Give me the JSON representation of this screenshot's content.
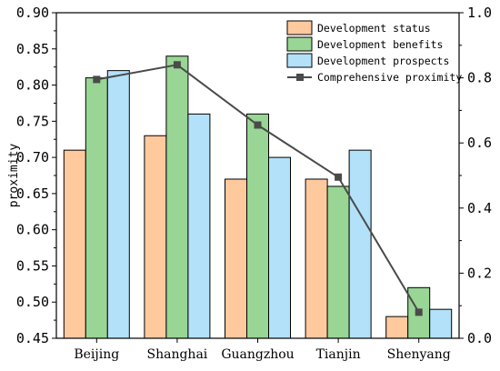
{
  "chart_data": {
    "type": "bar",
    "categories": [
      "Beijing",
      "Shanghai",
      "Guangzhou",
      "Tianjin",
      "Shenyang"
    ],
    "series": [
      {
        "name": "Development status",
        "values": [
          0.71,
          0.73,
          0.67,
          0.67,
          0.48
        ],
        "color": "#FFC99E"
      },
      {
        "name": "Development benefits",
        "values": [
          0.81,
          0.84,
          0.76,
          0.66,
          0.52
        ],
        "color": "#99D594"
      },
      {
        "name": "Development prospects",
        "values": [
          0.82,
          0.76,
          0.7,
          0.71,
          0.49
        ],
        "color": "#B3E1F9"
      }
    ],
    "line_series": {
      "name": "Comprehensive proximity",
      "values": [
        0.795,
        0.84,
        0.655,
        0.495,
        0.08
      ],
      "color": "#4A4A4A",
      "axis": "right"
    },
    "ylabel": "proximity",
    "ylim": [
      0.45,
      0.9
    ],
    "yticks": [
      "0.45",
      "0.50",
      "0.55",
      "0.60",
      "0.65",
      "0.70",
      "0.75",
      "0.80",
      "0.85",
      "0.90"
    ],
    "y2lim": [
      0.0,
      1.0
    ],
    "y2ticks": [
      "0.0",
      "0.2",
      "0.4",
      "0.6",
      "0.8",
      "1.0"
    ],
    "legend": "top-right",
    "grid": false
  }
}
